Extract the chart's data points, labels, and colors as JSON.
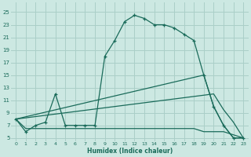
{
  "xlabel": "Humidex (Indice chaleur)",
  "bg_color": "#cce8e2",
  "grid_color": "#aacfc8",
  "line_color": "#1a6b5a",
  "x_ticks": [
    0,
    1,
    2,
    3,
    4,
    5,
    6,
    7,
    8,
    9,
    10,
    11,
    12,
    13,
    14,
    15,
    16,
    17,
    18,
    19,
    20,
    21,
    22,
    23
  ],
  "y_ticks": [
    5,
    7,
    9,
    11,
    13,
    15,
    17,
    19,
    21,
    23,
    25
  ],
  "ylim": [
    4.5,
    26.5
  ],
  "xlim": [
    -0.5,
    23.5
  ],
  "main_x": [
    0,
    1,
    2,
    3,
    4,
    5,
    6,
    7,
    8,
    9,
    10,
    11,
    12,
    13,
    14,
    15,
    16,
    17,
    18,
    19,
    20,
    21,
    22,
    23
  ],
  "main_y": [
    8.0,
    6.0,
    7.0,
    7.5,
    12.0,
    7.0,
    7.0,
    7.0,
    7.0,
    18.0,
    20.5,
    23.5,
    24.5,
    24.0,
    23.0,
    23.0,
    22.5,
    21.5,
    20.5,
    15.0,
    10.0,
    7.0,
    5.0,
    5.0
  ],
  "diag1_x": [
    0,
    19,
    20,
    21,
    22,
    23
  ],
  "diag1_y": [
    8.0,
    15.0,
    10.0,
    7.0,
    5.0,
    5.0
  ],
  "diag2_x": [
    0,
    20,
    21,
    22,
    23
  ],
  "diag2_y": [
    8.0,
    12.0,
    9.5,
    7.5,
    5.0
  ],
  "flat_x": [
    0,
    1,
    2,
    3,
    4,
    5,
    6,
    7,
    8,
    9,
    10,
    11,
    12,
    13,
    14,
    15,
    16,
    17,
    18,
    19,
    20,
    21,
    22,
    23
  ],
  "flat_y": [
    8.0,
    6.5,
    6.5,
    6.5,
    6.5,
    6.5,
    6.5,
    6.5,
    6.5,
    6.5,
    6.5,
    6.5,
    6.5,
    6.5,
    6.5,
    6.5,
    6.5,
    6.5,
    6.5,
    6.0,
    6.0,
    6.0,
    5.5,
    5.0
  ]
}
